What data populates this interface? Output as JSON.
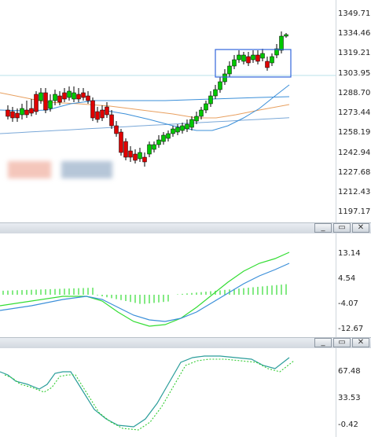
{
  "main_chart": {
    "price_axis": [
      "1349.71",
      "1334.46",
      "1319.21",
      "1303.95",
      "1288.70",
      "1273.44",
      "1258.19",
      "1242.94",
      "1227.68",
      "1212.43",
      "1197.17"
    ],
    "price_range": [
      1189.5,
      1357.4
    ],
    "colors": {
      "bull": "#00c800",
      "bear": "#e00000",
      "wick": "#000000",
      "ma_fast": "#3b8fd9",
      "ma_mid": "#e8a060",
      "ma_slow": "#7aa8d8",
      "box": "#3366dd",
      "hline": "#b8e0e8"
    }
  },
  "macd_pane": {
    "axis": [
      "13.14",
      "4.54",
      "-4.07",
      "-12.67"
    ],
    "colors": {
      "macd": "#33dd33",
      "signal": "#3b8fd9",
      "hist": "#33dd33"
    }
  },
  "stoch_pane": {
    "axis": [
      "67.48",
      "33.53",
      "-0.42"
    ],
    "colors": {
      "main": "#2a9d9a",
      "signal": "#33cc33"
    }
  },
  "window_buttons": {
    "minimize": "_",
    "maximize": "▭",
    "close": "✕"
  },
  "icons": {
    "minimize": "minimize-icon",
    "maximize": "maximize-icon",
    "close": "close-icon"
  }
}
